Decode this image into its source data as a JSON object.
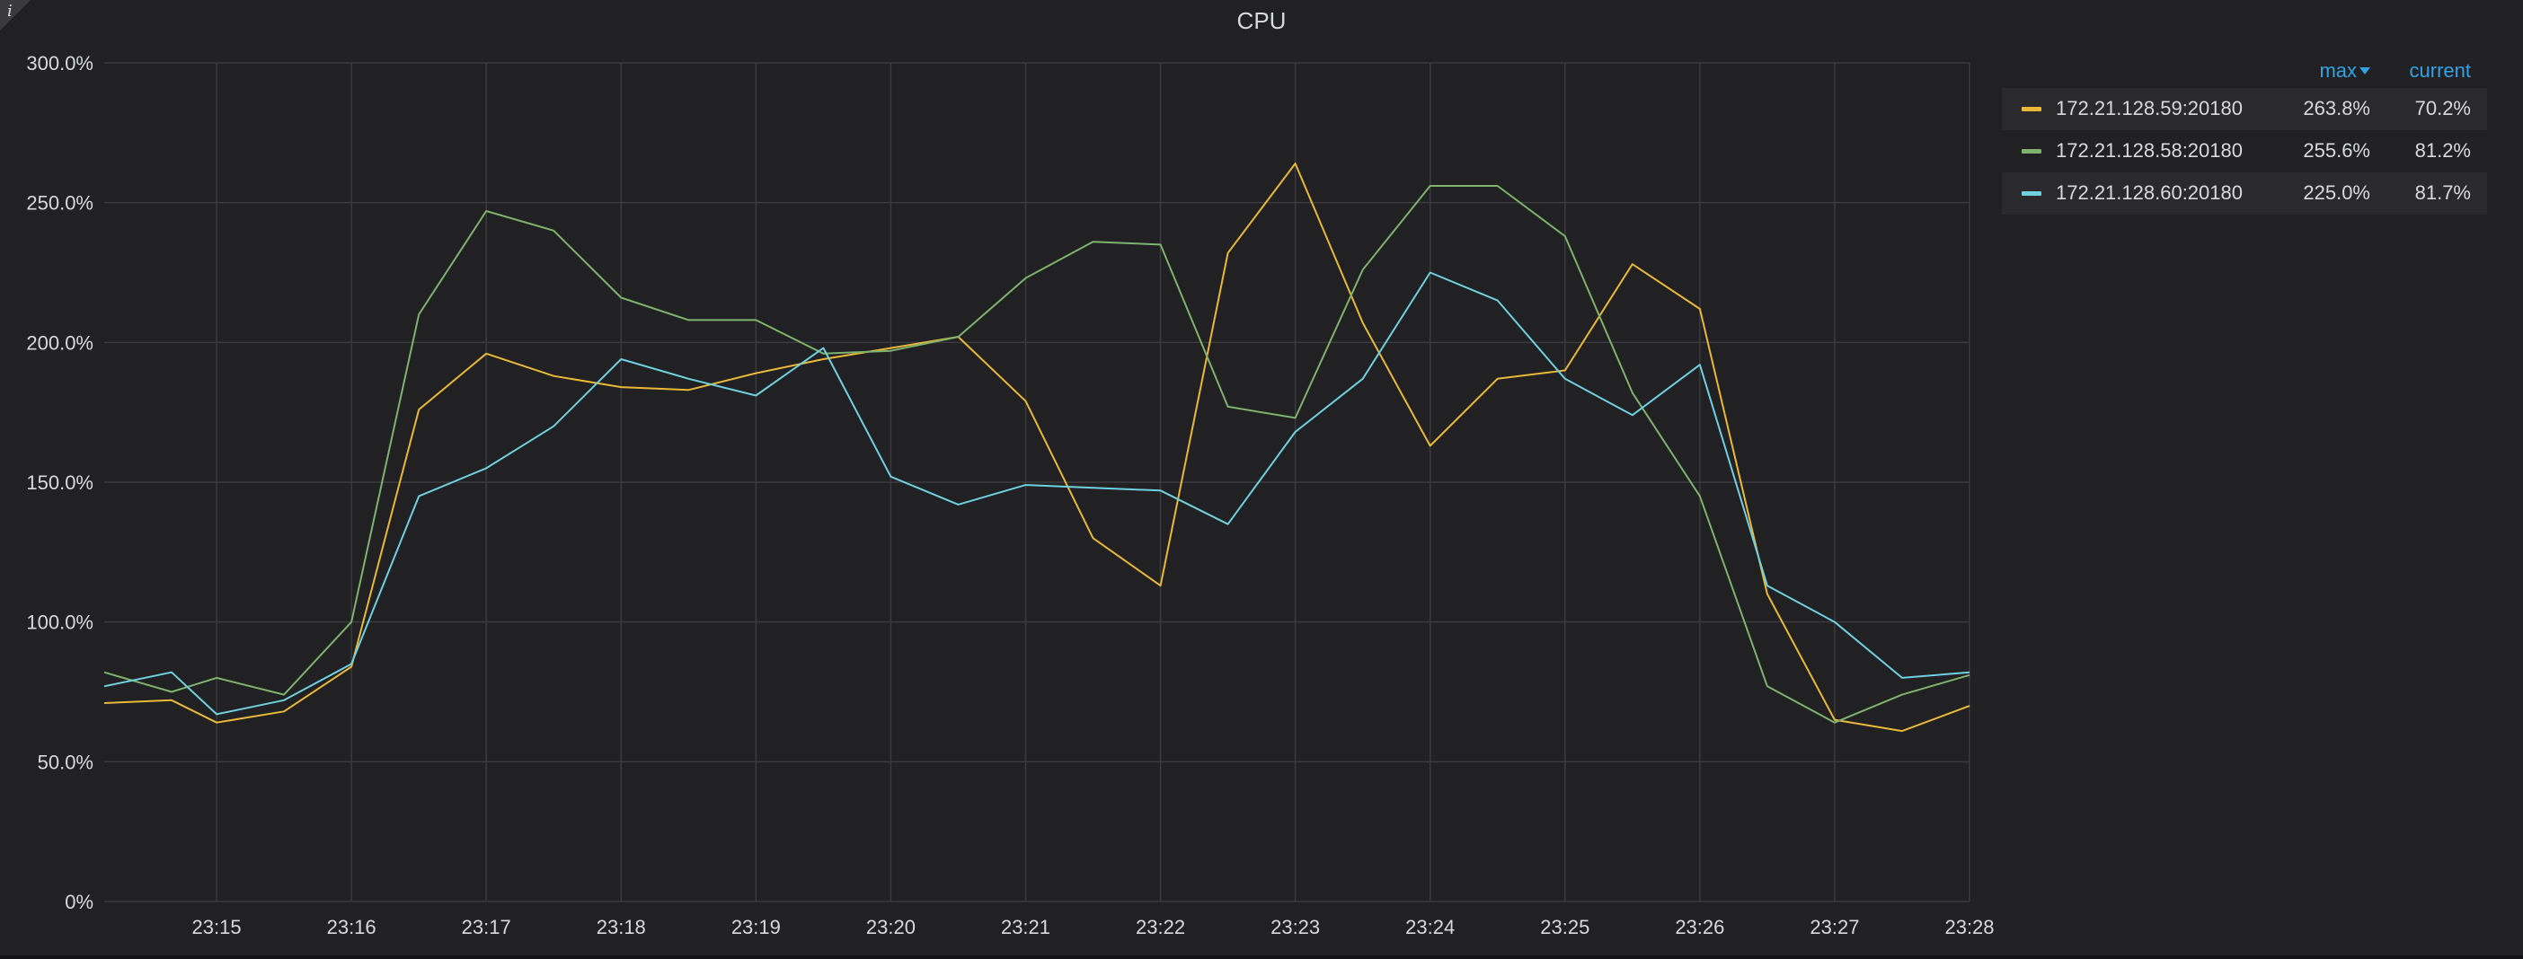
{
  "panel": {
    "info_icon": "info-icon"
  },
  "chart_data": {
    "type": "line",
    "title": "CPU",
    "xlabel": "",
    "ylabel": "",
    "ylim": [
      0,
      300
    ],
    "yticks": [
      "0%",
      "50.0%",
      "100.0%",
      "150.0%",
      "200.0%",
      "250.0%",
      "300.0%"
    ],
    "xticks": [
      "23:15",
      "23:16",
      "23:17",
      "23:18",
      "23:19",
      "23:20",
      "23:21",
      "23:22",
      "23:23",
      "23:24",
      "23:25",
      "23:26",
      "23:27",
      "23:28"
    ],
    "grid": true,
    "legend_position": "right",
    "x": [
      "23:14:10",
      "23:14:40",
      "23:15:00",
      "23:15:30",
      "23:16:00",
      "23:16:30",
      "23:17:00",
      "23:17:30",
      "23:18:00",
      "23:18:30",
      "23:19:00",
      "23:19:30",
      "23:20:00",
      "23:20:30",
      "23:21:00",
      "23:21:30",
      "23:22:00",
      "23:22:30",
      "23:23:00",
      "23:23:30",
      "23:24:00",
      "23:24:30",
      "23:25:00",
      "23:25:30",
      "23:26:00",
      "23:26:30",
      "23:27:00",
      "23:27:30",
      "23:28:00"
    ],
    "series": [
      {
        "name": "172.21.128.59:20180",
        "color": "#eab839",
        "values": [
          71,
          72,
          64,
          68,
          84,
          176,
          196,
          188,
          184,
          183,
          189,
          194,
          198,
          202,
          179,
          130,
          113,
          232,
          264,
          207,
          163,
          187,
          190,
          228,
          212,
          110,
          65,
          61,
          70
        ]
      },
      {
        "name": "172.21.128.58:20180",
        "color": "#7eb26d",
        "values": [
          82,
          75,
          80,
          74,
          100,
          210,
          247,
          240,
          216,
          208,
          208,
          196,
          197,
          202,
          223,
          236,
          235,
          177,
          173,
          226,
          256,
          256,
          238,
          182,
          145,
          77,
          64,
          74,
          81
        ]
      },
      {
        "name": "172.21.128.60:20180",
        "color": "#6ed0e0",
        "values": [
          77,
          82,
          67,
          72,
          85,
          145,
          155,
          170,
          194,
          187,
          181,
          198,
          152,
          142,
          149,
          148,
          147,
          135,
          168,
          187,
          225,
          215,
          187,
          174,
          192,
          113,
          100,
          80,
          82
        ]
      }
    ]
  },
  "legend": {
    "header_max": "max",
    "header_current": "current",
    "rows": [
      {
        "name": "172.21.128.59:20180",
        "max": "263.8%",
        "current": "70.2%",
        "color": "#eab839"
      },
      {
        "name": "172.21.128.58:20180",
        "max": "255.6%",
        "current": "81.2%",
        "color": "#7eb26d"
      },
      {
        "name": "172.21.128.60:20180",
        "max": "225.0%",
        "current": "81.7%",
        "color": "#6ed0e0"
      }
    ]
  }
}
